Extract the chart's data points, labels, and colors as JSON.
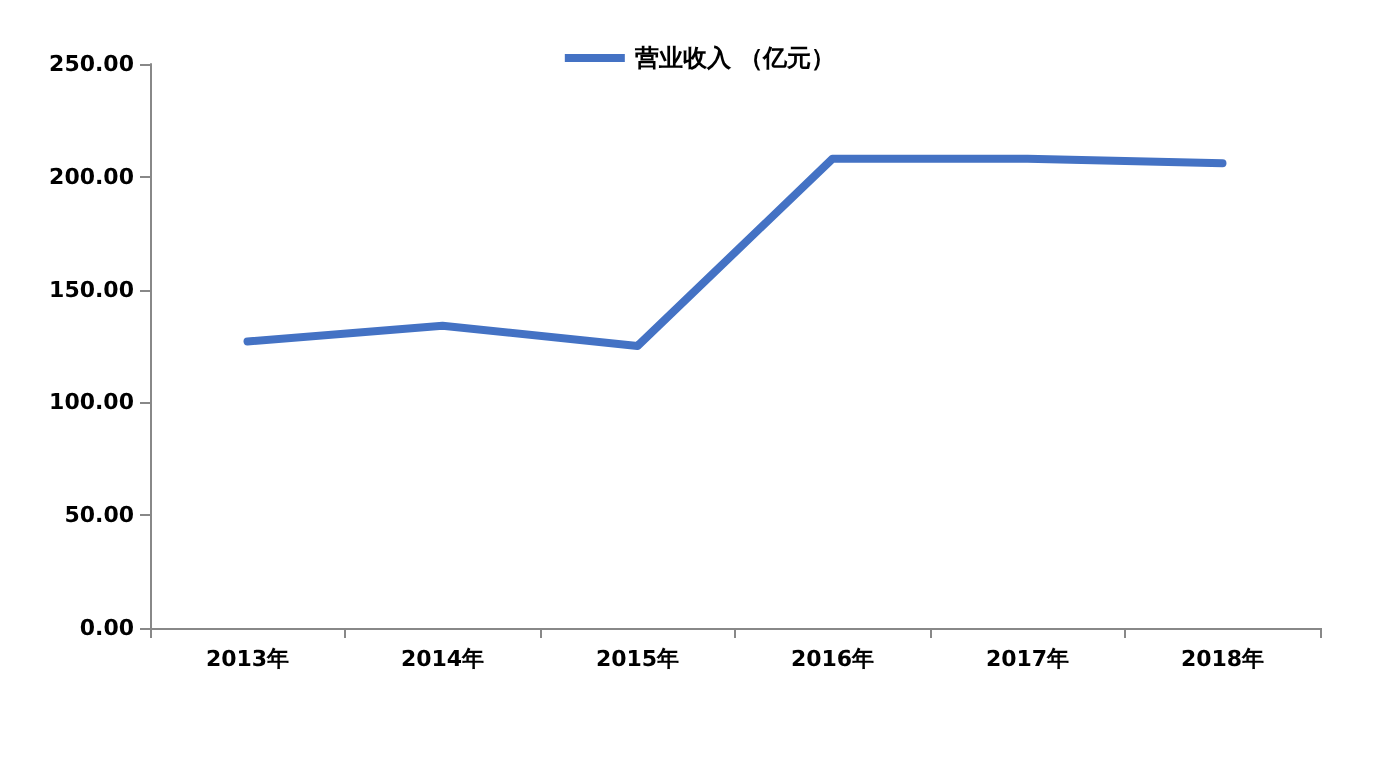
{
  "chart_data": {
    "type": "line",
    "categories": [
      "2013年",
      "2014年",
      "2015年",
      "2016年",
      "2017年",
      "2018年"
    ],
    "series": [
      {
        "name": "营业收入 （亿元）",
        "color": "#4472c4",
        "values": [
          127,
          134,
          125,
          208,
          208,
          206
        ]
      }
    ],
    "ylim": [
      0,
      250
    ],
    "yticks": [
      {
        "value": 0,
        "label": "0.00"
      },
      {
        "value": 50,
        "label": "50.00"
      },
      {
        "value": 100,
        "label": "100.00"
      },
      {
        "value": 150,
        "label": "150.00"
      },
      {
        "value": 200,
        "label": "200.00"
      },
      {
        "value": 250,
        "label": "250.00"
      }
    ],
    "grid": false,
    "legend": "top",
    "marker": "none"
  }
}
